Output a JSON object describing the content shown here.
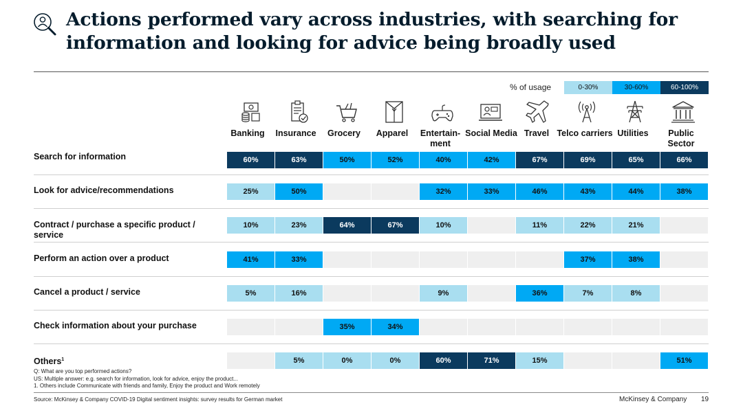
{
  "title": {
    "line1": "Actions performed vary across industries, with searching for",
    "line2": "information and looking for advice being broadly used"
  },
  "legend": {
    "label": "% of usage",
    "bins": [
      {
        "label": "0-30%",
        "color": "#a9def0"
      },
      {
        "label": "30-60%",
        "color": "#00a9f4"
      },
      {
        "label": "60-100%",
        "color": "#0b3a5e"
      }
    ]
  },
  "icons": [
    "banking-icon",
    "insurance-icon",
    "grocery-icon",
    "apparel-icon",
    "entertainment-icon",
    "social-media-icon",
    "travel-icon",
    "telco-icon",
    "utilities-icon",
    "public-sector-icon"
  ],
  "chart_data": {
    "type": "table",
    "title": "Actions performed vary across industries, with searching for information and looking for advice being broadly used",
    "columns": [
      "Banking",
      "Insurance",
      "Grocery",
      "Apparel",
      "Entertain-\nment",
      "Social Media",
      "Travel",
      "Telco carriers",
      "Utilities",
      "Public\nSector"
    ],
    "rows": [
      {
        "label": "Search for information",
        "values": [
          60,
          63,
          50,
          52,
          40,
          42,
          67,
          69,
          65,
          66
        ]
      },
      {
        "label": "Look for advice/recommendations",
        "values": [
          25,
          50,
          null,
          null,
          32,
          33,
          46,
          43,
          44,
          38
        ]
      },
      {
        "label": "Contract / purchase a specific product /\nservice",
        "values": [
          10,
          23,
          64,
          67,
          10,
          null,
          11,
          22,
          21,
          null
        ]
      },
      {
        "label": "Perform an action over a product",
        "values": [
          41,
          33,
          null,
          null,
          null,
          null,
          null,
          37,
          38,
          null
        ]
      },
      {
        "label": "Cancel a product / service",
        "values": [
          5,
          16,
          null,
          null,
          9,
          null,
          36,
          7,
          8,
          null
        ]
      },
      {
        "label": "Check information about your purchase",
        "values": [
          null,
          null,
          35,
          34,
          null,
          null,
          null,
          null,
          null,
          null
        ]
      },
      {
        "label": "Others",
        "label_sup": "1",
        "values": [
          null,
          5,
          0,
          0,
          60,
          71,
          15,
          null,
          null,
          51
        ]
      }
    ],
    "unit": "%"
  },
  "notes": [
    "Q: What are you top performed actions?",
    "US: Multiple answer: e.g. search for information, look for advice, enjoy the product...",
    "1.    Others include Communicate with friends and family, Enjoy the product and Work remotely"
  ],
  "footer": {
    "source": "Source: McKinsey & Company COVID-19 Digital sentiment insights: survey results for German market",
    "brand": "McKinsey & Company",
    "page": "19"
  }
}
